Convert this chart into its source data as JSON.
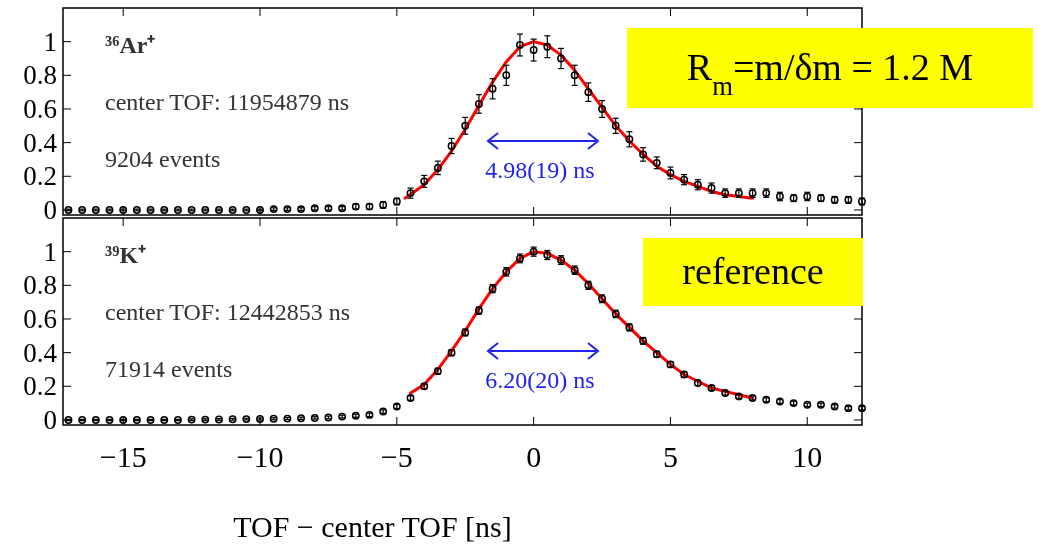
{
  "chart_data": [
    {
      "type": "scatter",
      "xlim": [
        -17.2,
        12
      ],
      "ylim": [
        -0.03,
        1.2
      ],
      "xticks": [
        -15,
        -10,
        -5,
        0,
        5,
        10
      ],
      "yticks": [
        0,
        0.2,
        0.4,
        0.6,
        0.8,
        1
      ],
      "tick_labels": "y",
      "annotations": [
        "³⁶Ar⁺",
        "center TOF: 11954879 ns",
        "9204 events",
        "R$_{m}$=m/δm = 1.2 M",
        "4.98(19) ns"
      ],
      "series": [
        {
          "marker": "circle",
          "color": "#000000",
          "x": [
            -17,
            -16.5,
            -16,
            -15.5,
            -15,
            -14.5,
            -14,
            -13.5,
            -13,
            -12.5,
            -12,
            -11.5,
            -11,
            -10.5,
            -10,
            -9.5,
            -9,
            -8.5,
            -8,
            -7.5,
            -7,
            -6.5,
            -6,
            -5.5,
            -5,
            -4.5,
            -4,
            -3.5,
            -3,
            -2.5,
            -2,
            -1.5,
            -1,
            -0.5,
            0,
            0.5,
            1,
            1.5,
            2,
            2.5,
            3,
            3.5,
            4,
            4.5,
            5,
            5.5,
            6,
            6.5,
            7,
            7.5,
            8,
            8.5,
            9,
            9.5,
            10,
            10.5,
            11,
            11.5,
            12
          ],
          "values": [
            0,
            0,
            0,
            0,
            0,
            0,
            0,
            0,
            0,
            0,
            0,
            0,
            0,
            0,
            0,
            0.005,
            0.005,
            0.005,
            0.01,
            0.01,
            0.01,
            0.02,
            0.02,
            0.03,
            0.05,
            0.1,
            0.17,
            0.25,
            0.38,
            0.5,
            0.63,
            0.72,
            0.8,
            0.98,
            0.95,
            0.97,
            0.9,
            0.8,
            0.7,
            0.6,
            0.5,
            0.42,
            0.33,
            0.28,
            0.22,
            0.18,
            0.15,
            0.13,
            0.1,
            0.1,
            0.1,
            0.1,
            0.08,
            0.07,
            0.08,
            0.07,
            0.06,
            0.06,
            0.05
          ],
          "errors": [
            0.005,
            0.005,
            0.005,
            0.005,
            0.005,
            0.005,
            0.005,
            0.005,
            0.005,
            0.005,
            0.005,
            0.005,
            0.005,
            0.005,
            0.005,
            0.008,
            0.008,
            0.008,
            0.01,
            0.01,
            0.01,
            0.015,
            0.015,
            0.02,
            0.02,
            0.03,
            0.035,
            0.04,
            0.045,
            0.05,
            0.055,
            0.06,
            0.06,
            0.065,
            0.065,
            0.065,
            0.06,
            0.06,
            0.055,
            0.05,
            0.045,
            0.045,
            0.04,
            0.035,
            0.035,
            0.03,
            0.03,
            0.03,
            0.025,
            0.025,
            0.025,
            0.025,
            0.025,
            0.02,
            0.025,
            0.02,
            0.02,
            0.02,
            0.02
          ]
        },
        {
          "type": "line",
          "color": "#ff0000",
          "x": [
            -4.7,
            -4,
            -3.5,
            -3,
            -2.5,
            -2,
            -1.5,
            -1,
            -0.5,
            0,
            0.5,
            1,
            1.5,
            2,
            2.5,
            3,
            3.5,
            4,
            4.5,
            5,
            5.5,
            6,
            6.5,
            7,
            7.5,
            8
          ],
          "values": [
            0.07,
            0.15,
            0.24,
            0.35,
            0.48,
            0.62,
            0.76,
            0.88,
            0.97,
            1,
            0.98,
            0.92,
            0.83,
            0.72,
            0.61,
            0.5,
            0.41,
            0.33,
            0.26,
            0.21,
            0.17,
            0.14,
            0.11,
            0.09,
            0.08,
            0.07
          ]
        }
      ]
    },
    {
      "type": "scatter",
      "xlim": [
        -17.2,
        12
      ],
      "ylim": [
        -0.03,
        1.2
      ],
      "xticks": [
        -15,
        -10,
        -5,
        0,
        5,
        10
      ],
      "yticks": [
        0,
        0.2,
        0.4,
        0.6,
        0.8,
        1
      ],
      "xlabel": "TOF − center TOF [ns]",
      "annotations": [
        "³⁹K⁺",
        "center TOF: 12442853 ns",
        "71914 events",
        "reference",
        "6.20(20) ns"
      ],
      "series": [
        {
          "marker": "circle",
          "color": "#000000",
          "x": [
            -17,
            -16.5,
            -16,
            -15.5,
            -15,
            -14.5,
            -14,
            -13.5,
            -13,
            -12.5,
            -12,
            -11.5,
            -11,
            -10.5,
            -10,
            -9.5,
            -9,
            -8.5,
            -8,
            -7.5,
            -7,
            -6.5,
            -6,
            -5.5,
            -5,
            -4.5,
            -4,
            -3.5,
            -3,
            -2.5,
            -2,
            -1.5,
            -1,
            -0.5,
            0,
            0.5,
            1,
            1.5,
            2,
            2.5,
            3,
            3.5,
            4,
            4.5,
            5,
            5.5,
            6,
            6.5,
            7,
            7.5,
            8,
            8.5,
            9,
            9.5,
            10,
            10.5,
            11,
            11.5,
            12
          ],
          "values": [
            0,
            0,
            0,
            0,
            0,
            0,
            0,
            0,
            0,
            0.002,
            0.002,
            0.003,
            0.004,
            0.005,
            0.006,
            0.007,
            0.008,
            0.01,
            0.012,
            0.015,
            0.02,
            0.025,
            0.03,
            0.05,
            0.08,
            0.13,
            0.2,
            0.29,
            0.4,
            0.52,
            0.65,
            0.78,
            0.88,
            0.96,
            1,
            0.98,
            0.95,
            0.89,
            0.8,
            0.72,
            0.63,
            0.55,
            0.47,
            0.39,
            0.33,
            0.27,
            0.22,
            0.19,
            0.16,
            0.14,
            0.13,
            0.12,
            0.11,
            0.1,
            0.09,
            0.09,
            0.08,
            0.07,
            0.07
          ],
          "errors": [
            0.004,
            0.004,
            0.004,
            0.004,
            0.004,
            0.004,
            0.004,
            0.004,
            0.004,
            0.005,
            0.005,
            0.005,
            0.005,
            0.005,
            0.006,
            0.006,
            0.006,
            0.007,
            0.007,
            0.008,
            0.008,
            0.009,
            0.01,
            0.01,
            0.012,
            0.013,
            0.015,
            0.017,
            0.018,
            0.02,
            0.022,
            0.024,
            0.025,
            0.026,
            0.027,
            0.027,
            0.026,
            0.025,
            0.024,
            0.023,
            0.022,
            0.021,
            0.02,
            0.018,
            0.017,
            0.016,
            0.015,
            0.014,
            0.013,
            0.012,
            0.012,
            0.012,
            0.011,
            0.011,
            0.01,
            0.01,
            0.01,
            0.01,
            0.01
          ]
        },
        {
          "type": "line",
          "color": "#ff0000",
          "x": [
            -4.5,
            -4,
            -3.5,
            -3,
            -2.5,
            -2,
            -1.5,
            -1,
            -0.5,
            0,
            0.5,
            1,
            1.5,
            2,
            2.5,
            3,
            3.5,
            4,
            4.5,
            5,
            5.5,
            6,
            6.5,
            7,
            7.5,
            8
          ],
          "values": [
            0.16,
            0.21,
            0.3,
            0.41,
            0.53,
            0.66,
            0.78,
            0.88,
            0.96,
            1,
            0.99,
            0.95,
            0.89,
            0.81,
            0.72,
            0.63,
            0.55,
            0.47,
            0.4,
            0.33,
            0.27,
            0.23,
            0.19,
            0.17,
            0.15,
            0.13
          ]
        }
      ]
    }
  ]
}
